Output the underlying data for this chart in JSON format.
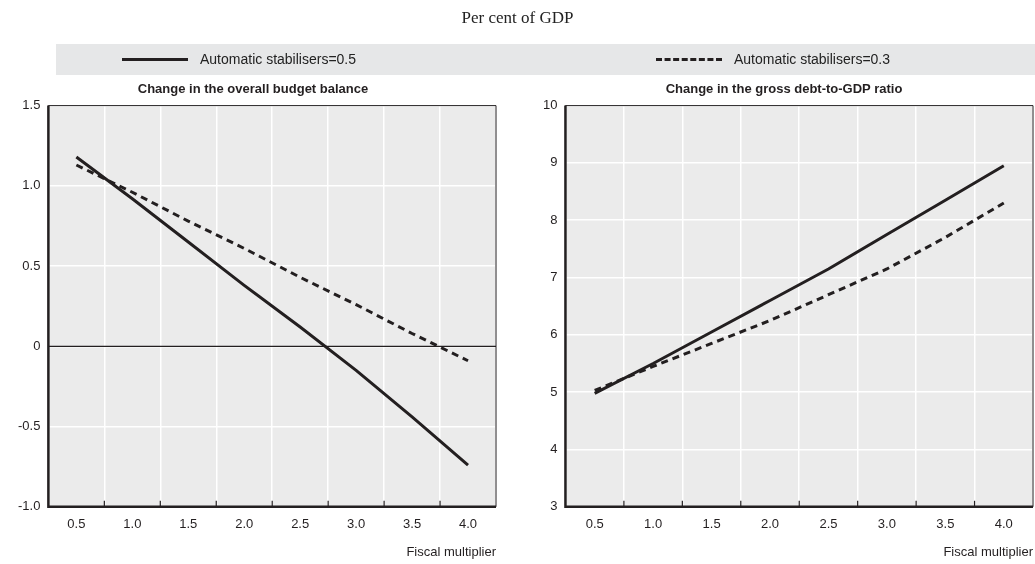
{
  "chart_data": [
    {
      "type": "line",
      "title": "Change in the overall budget balance",
      "subtitle": "Per cent of GDP",
      "xlabel": "Fiscal multiplier",
      "categories": [
        "0.5",
        "1.0",
        "1.5",
        "2.0",
        "2.5",
        "3.0",
        "3.5",
        "4.0"
      ],
      "series": [
        {
          "name": "Automatic stabilisers=0.5",
          "color": "#231f20",
          "line_style": "solid",
          "values": [
            1.18,
            0.92,
            0.65,
            0.38,
            0.12,
            -0.15,
            -0.44,
            -0.74
          ]
        },
        {
          "name": "Automatic stabilisers=0.3",
          "color": "#231f20",
          "line_style": "dashed",
          "values": [
            1.13,
            0.96,
            0.78,
            0.61,
            0.43,
            0.26,
            0.08,
            -0.09
          ]
        }
      ],
      "ylim": [
        -1,
        1.5
      ],
      "yticks": [
        {
          "value": -1,
          "label": "-1.0"
        },
        -0.5,
        0,
        0.5,
        {
          "value": 1,
          "label": "1.0"
        },
        1.5
      ],
      "ref_lines": [
        {
          "axis": "y",
          "value": 0,
          "color": "#231f20"
        }
      ],
      "grid": true,
      "legend": "top",
      "marker": "none"
    },
    {
      "type": "line",
      "title": "Change in the gross debt-to-GDP ratio",
      "xlabel": "Fiscal multiplier",
      "categories": [
        "0.5",
        "1.0",
        "1.5",
        "2.0",
        "2.5",
        "3.0",
        "3.5",
        "4.0"
      ],
      "series": [
        {
          "color": "#231f20",
          "line_style": "solid",
          "values": [
            4.98,
            5.5,
            6.05,
            6.6,
            7.15,
            7.75,
            8.35,
            8.95
          ]
        },
        {
          "color": "#231f20",
          "line_style": "dashed",
          "values": [
            5.03,
            5.45,
            5.85,
            6.25,
            6.7,
            7.15,
            7.7,
            8.3
          ]
        }
      ],
      "ylim": [
        3,
        10
      ],
      "yticks": [
        3,
        4,
        5,
        6,
        7,
        8,
        9,
        10
      ],
      "grid": true,
      "marker": "none"
    }
  ]
}
